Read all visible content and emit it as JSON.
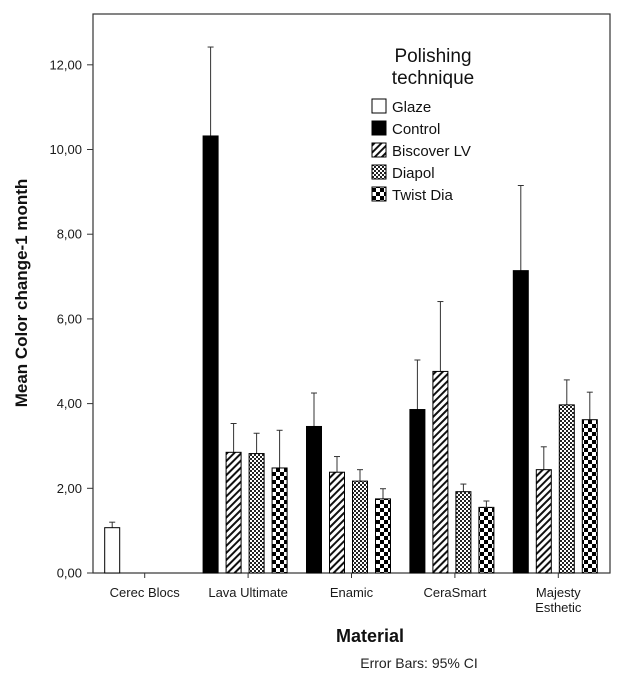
{
  "chart_data": {
    "type": "bar",
    "title": "",
    "xlabel": "Material",
    "ylabel": "Mean Color change-1 month",
    "ylim": [
      0,
      13.2
    ],
    "yticks": [
      "0,00",
      "2,00",
      "4,00",
      "6,00",
      "8,00",
      "10,00",
      "12,00"
    ],
    "ytick_values": [
      0,
      2,
      4,
      6,
      8,
      10,
      12
    ],
    "categories": [
      [
        "Cerec Blocs"
      ],
      [
        "Lava Ultimate"
      ],
      [
        "Enamic"
      ],
      [
        "CeraSmart"
      ],
      [
        "Majesty",
        "Esthetic"
      ]
    ],
    "legend_title": [
      "Polishing",
      "technique"
    ],
    "legend_position": "top-right",
    "grid": false,
    "footnote": "Error Bars: 95% CI",
    "series": [
      {
        "name": "Glaze",
        "pattern": "white",
        "values": [
          1.07,
          null,
          null,
          null,
          null
        ],
        "error_upper": [
          1.2,
          null,
          null,
          null,
          null
        ]
      },
      {
        "name": "Control",
        "pattern": "solid",
        "values": [
          null,
          10.32,
          3.46,
          3.86,
          7.14
        ],
        "error_upper": [
          null,
          12.42,
          4.25,
          5.03,
          9.15
        ]
      },
      {
        "name": "Biscover LV",
        "pattern": "diagonal",
        "values": [
          null,
          2.85,
          2.38,
          4.76,
          2.44
        ],
        "error_upper": [
          null,
          3.53,
          2.75,
          6.41,
          2.98
        ]
      },
      {
        "name": "Diapol",
        "pattern": "crosshatch",
        "values": [
          null,
          2.82,
          2.17,
          1.92,
          3.97
        ],
        "error_upper": [
          null,
          3.3,
          2.44,
          2.1,
          4.56
        ]
      },
      {
        "name": "Twist Dia",
        "pattern": "checker",
        "values": [
          null,
          2.48,
          1.75,
          1.55,
          3.62
        ],
        "error_upper": [
          null,
          3.37,
          1.99,
          1.7,
          4.27
        ]
      }
    ]
  }
}
